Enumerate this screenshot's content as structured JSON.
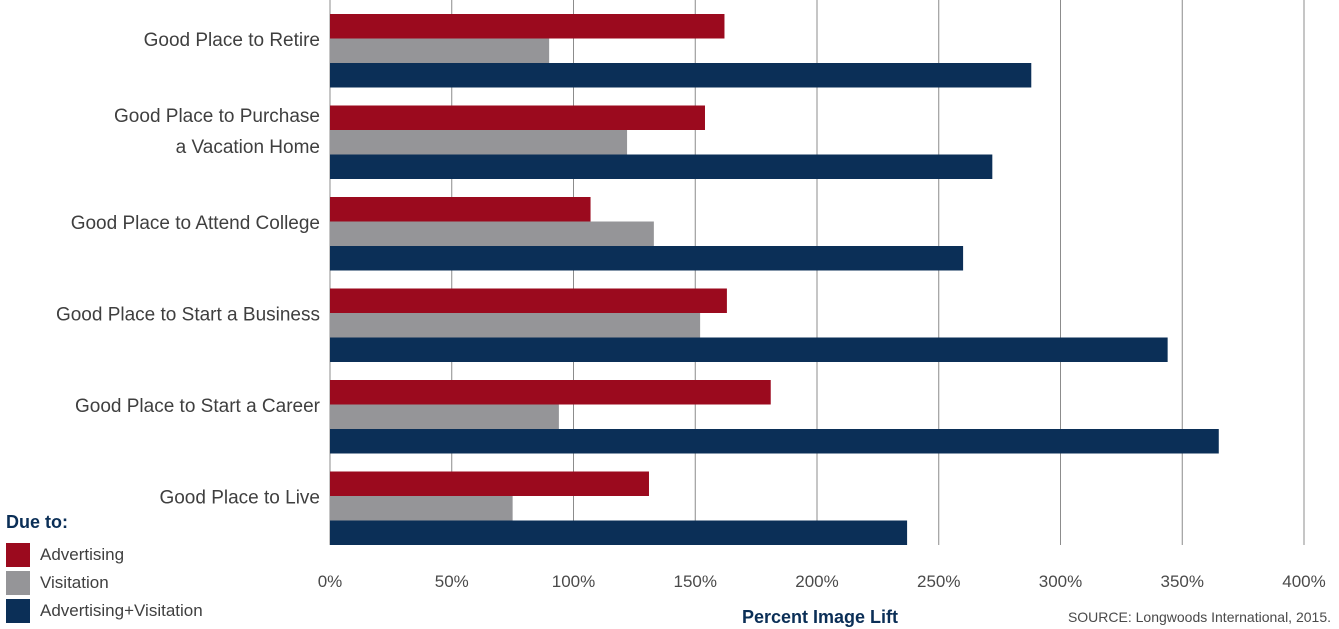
{
  "chart_data": {
    "type": "bar",
    "orientation": "horizontal",
    "categories": [
      [
        "Good Place to Retire"
      ],
      [
        "Good Place to Purchase",
        "a Vacation Home"
      ],
      [
        "Good Place to Attend College"
      ],
      [
        "Good Place to Start a Business"
      ],
      [
        "Good Place to Start a Career"
      ],
      [
        "Good Place to Live"
      ]
    ],
    "series": [
      {
        "name": "Advertising",
        "color": "#9b0a1e",
        "values": [
          162,
          154,
          107,
          163,
          181,
          131
        ]
      },
      {
        "name": "Visitation",
        "color": "#959598",
        "values": [
          90,
          122,
          133,
          152,
          94,
          75
        ]
      },
      {
        "name": "Advertising+Visitation",
        "color": "#0b2f57",
        "values": [
          288,
          272,
          260,
          344,
          365,
          237
        ]
      }
    ],
    "xlim": [
      0,
      400
    ],
    "xticks": [
      "0%",
      "50%",
      "100%",
      "150%",
      "200%",
      "250%",
      "300%",
      "350%",
      "400%"
    ],
    "xlabel": "Percent Image Lift",
    "grid": true,
    "gridline_color": "#8c8c8c",
    "legend_title": "Due to:",
    "legend_position": "bottom-left",
    "source": "SOURCE: Longwoods International, 2015."
  }
}
